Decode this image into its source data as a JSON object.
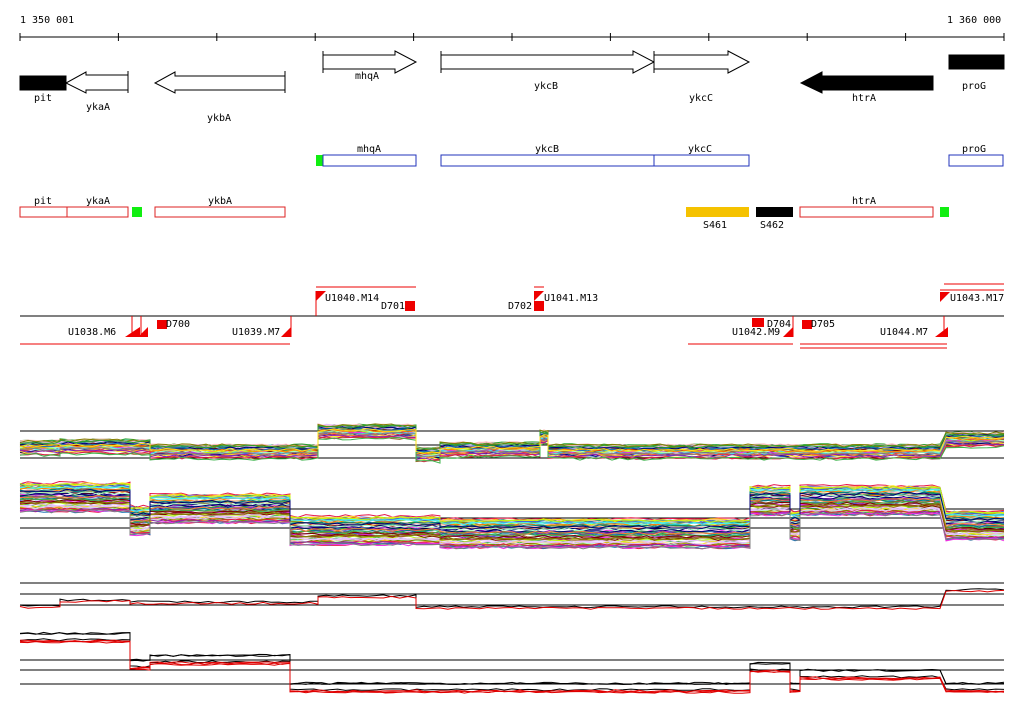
{
  "ruler": {
    "start_label": "1 350 001",
    "end_label": "1 360 000"
  },
  "genes": [
    {
      "name": "pit",
      "strand": "-",
      "style": "filled"
    },
    {
      "name": "ykaA",
      "strand": "-",
      "style": "open"
    },
    {
      "name": "ykbA",
      "strand": "-",
      "style": "open"
    },
    {
      "name": "mhqA",
      "strand": "+",
      "style": "open"
    },
    {
      "name": "ykcB",
      "strand": "+",
      "style": "open"
    },
    {
      "name": "ykcC",
      "strand": "+",
      "style": "open"
    },
    {
      "name": "htrA",
      "strand": "-",
      "style": "filled"
    },
    {
      "name": "proG",
      "strand": "+",
      "style": "filled"
    }
  ],
  "blue_track": [
    "mhqA",
    "ykcB",
    "ykcC",
    "proG"
  ],
  "red_track": [
    "pit",
    "ykaA",
    "ykbA",
    "htrA"
  ],
  "segments": [
    "S461",
    "S462"
  ],
  "segment_colors": {
    "S461": "#f5c200",
    "S462": "#000000"
  },
  "upper_labels": [
    "U1040.M14",
    "D701",
    "D702",
    "U1041.M13",
    "U1043.M17"
  ],
  "lower_labels": [
    "U1038.M6",
    "D700",
    "U1039.M7",
    "D704",
    "U1042.M9",
    "D705",
    "U1044.M7"
  ],
  "colors": {
    "gene_track_blue": "#2233bb",
    "gene_track_red": "#dd2222",
    "marker_green": "#11ee11",
    "feature_red": "#ee0000"
  }
}
